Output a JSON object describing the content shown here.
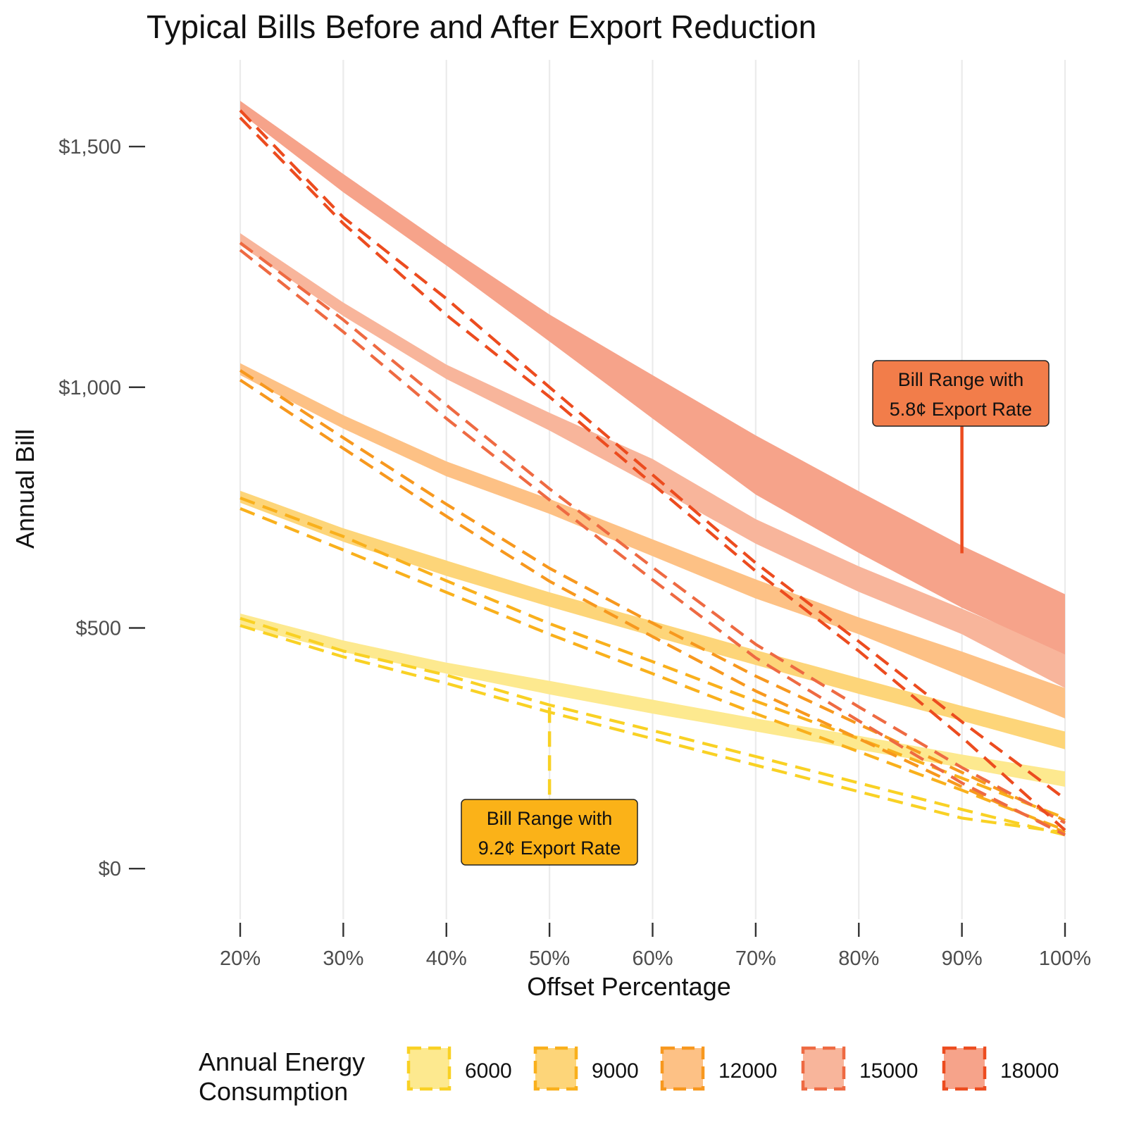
{
  "chart_data": {
    "type": "line",
    "title": "Typical Bills Before and After Export Reduction",
    "xlabel": "Offset Percentage",
    "ylabel": "Annual Bill",
    "x": [
      0.2,
      0.3,
      0.4,
      0.5,
      0.6,
      0.7,
      0.8,
      0.9,
      1.0
    ],
    "x_tick_labels": [
      "20%",
      "30%",
      "40%",
      "50%",
      "60%",
      "70%",
      "80%",
      "90%",
      "100%"
    ],
    "xlim": [
      0.2,
      1.0
    ],
    "y_ticks": [
      0,
      500,
      1000,
      1500
    ],
    "y_tick_labels": [
      "$0",
      "$500",
      "$1,000",
      "$1,500"
    ],
    "ylim": [
      -105,
      1680
    ],
    "grid": "vertical major gridlines",
    "legend": {
      "title_lines": [
        "Annual Energy",
        "Consumption"
      ],
      "position": "bottom"
    },
    "series": [
      {
        "name": "6000",
        "fill_color": "#FDE98F",
        "line_color": "#F9D124",
        "band_upper": [
          530,
          474,
          428,
          390,
          351,
          312,
          276,
          237,
          202
        ],
        "band_lower": [
          505,
          450,
          405,
          362,
          322,
          285,
          247,
          210,
          170
        ],
        "dashed": [
          [
            520,
            452,
            402,
            340,
            287,
            233,
            178,
            123,
            70
          ],
          [
            505,
            440,
            385,
            325,
            270,
            215,
            160,
            105,
            75
          ]
        ]
      },
      {
        "name": "9000",
        "fill_color": "#FDD579",
        "line_color": "#F9B01C",
        "band_upper": [
          785,
          707,
          640,
          574,
          514,
          454,
          396,
          338,
          285
        ],
        "band_lower": [
          760,
          679,
          608,
          544,
          483,
          423,
          363,
          307,
          248
        ],
        "dashed": [
          [
            770,
            690,
            598,
            509,
            430,
            348,
            270,
            188,
            105
          ],
          [
            748,
            662,
            574,
            487,
            405,
            322,
            243,
            163,
            80
          ]
        ]
      },
      {
        "name": "12000",
        "fill_color": "#FDC185",
        "line_color": "#F7981E",
        "band_upper": [
          1050,
          942,
          846,
          768,
          684,
          601,
          522,
          451,
          375
        ],
        "band_lower": [
          1025,
          914,
          815,
          737,
          649,
          561,
          487,
          400,
          312
        ],
        "dashed": [
          [
            1035,
            895,
            757,
            624,
            510,
            400,
            300,
            200,
            100
          ],
          [
            1015,
            873,
            732,
            597,
            482,
            369,
            270,
            170,
            75
          ]
        ]
      },
      {
        "name": "15000",
        "fill_color": "#F8B59B",
        "line_color": "#EE6A42",
        "band_upper": [
          1320,
          1176,
          1047,
          947,
          851,
          726,
          628,
          540,
          450
        ],
        "band_lower": [
          1295,
          1148,
          1017,
          910,
          795,
          675,
          575,
          487,
          375
        ],
        "dashed": [
          [
            1300,
            1140,
            963,
            789,
            626,
            466,
            336,
            210,
            95
          ],
          [
            1285,
            1115,
            935,
            766,
            600,
            438,
            307,
            178,
            70
          ]
        ]
      },
      {
        "name": "18000",
        "fill_color": "#F6A38A",
        "line_color": "#EC4C1F",
        "band_upper": [
          1595,
          1443,
          1294,
          1151,
          1025,
          900,
          784,
          671,
          570
        ],
        "band_lower": [
          1570,
          1405,
          1253,
          1095,
          935,
          777,
          656,
          542,
          445
        ],
        "dashed": [
          [
            1575,
            1353,
            1184,
            1000,
            818,
            635,
            472,
            305,
            145
          ],
          [
            1560,
            1340,
            1150,
            980,
            799,
            618,
            452,
            273,
            80
          ]
        ]
      }
    ],
    "annotations": [
      {
        "lines": [
          "Bill Range with",
          "5.8¢ Export Rate"
        ],
        "fill_color": "#F27D4A",
        "pointer_color": "#EC4C1F",
        "pointer_x": 0.9,
        "pointer_y": [
          945,
          655
        ]
      },
      {
        "lines": [
          "Bill Range with",
          "9.2¢ Export Rate"
        ],
        "fill_color": "#FBB218",
        "pointer_color": "#F9D124",
        "pointer_x": 0.5,
        "pointer_y": [
          335,
          120
        ]
      }
    ]
  }
}
